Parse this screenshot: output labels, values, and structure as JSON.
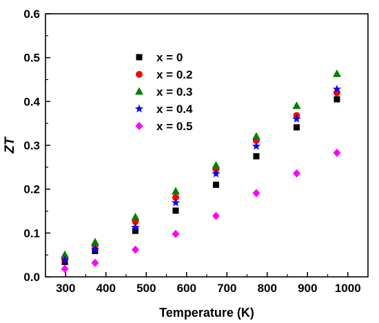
{
  "chart_data": {
    "type": "scatter",
    "xlabel": "Temperature (K)",
    "ylabel": "ZT",
    "xlim": [
      250,
      1050
    ],
    "ylim": [
      0,
      0.6
    ],
    "xticks": [
      300,
      400,
      500,
      600,
      700,
      800,
      900,
      1000
    ],
    "xtick_labels": [
      "300",
      "400",
      "500",
      "600",
      "700",
      "800",
      "900",
      "1000"
    ],
    "yticks": [
      0.0,
      0.1,
      0.2,
      0.3,
      0.4,
      0.5,
      0.6
    ],
    "ytick_labels": [
      "0.0",
      "0.1",
      "0.2",
      "0.3",
      "0.4",
      "0.5",
      "0.6"
    ],
    "grid": false,
    "legend_position": "upper-left",
    "series": [
      {
        "name": "x = 0",
        "marker": "square",
        "color": "#000000",
        "x": [
          298,
          373,
          473,
          573,
          673,
          773,
          873,
          973
        ],
        "y": [
          0.034,
          0.059,
          0.105,
          0.151,
          0.21,
          0.275,
          0.341,
          0.405
        ]
      },
      {
        "name": "x = 0.2",
        "marker": "circle",
        "color": "#ff0000",
        "x": [
          298,
          373,
          473,
          573,
          673,
          773,
          873,
          973
        ],
        "y": [
          0.04,
          0.072,
          0.126,
          0.181,
          0.245,
          0.311,
          0.368,
          0.42
        ]
      },
      {
        "name": "x = 0.3",
        "marker": "triangle",
        "color": "#008000",
        "x": [
          298,
          373,
          473,
          573,
          673,
          773,
          873,
          973
        ],
        "y": [
          0.05,
          0.079,
          0.136,
          0.195,
          0.254,
          0.32,
          0.39,
          0.463
        ]
      },
      {
        "name": "x = 0.4",
        "marker": "star",
        "color": "#0000ff",
        "x": [
          298,
          373,
          473,
          573,
          673,
          773,
          873,
          973
        ],
        "y": [
          0.038,
          0.063,
          0.113,
          0.169,
          0.235,
          0.298,
          0.36,
          0.428
        ]
      },
      {
        "name": "x = 0.5",
        "marker": "diamond",
        "color": "#ff00ff",
        "x": [
          298,
          373,
          473,
          573,
          673,
          773,
          873,
          973
        ],
        "y": [
          0.018,
          0.032,
          0.062,
          0.098,
          0.139,
          0.191,
          0.236,
          0.283
        ]
      }
    ]
  }
}
